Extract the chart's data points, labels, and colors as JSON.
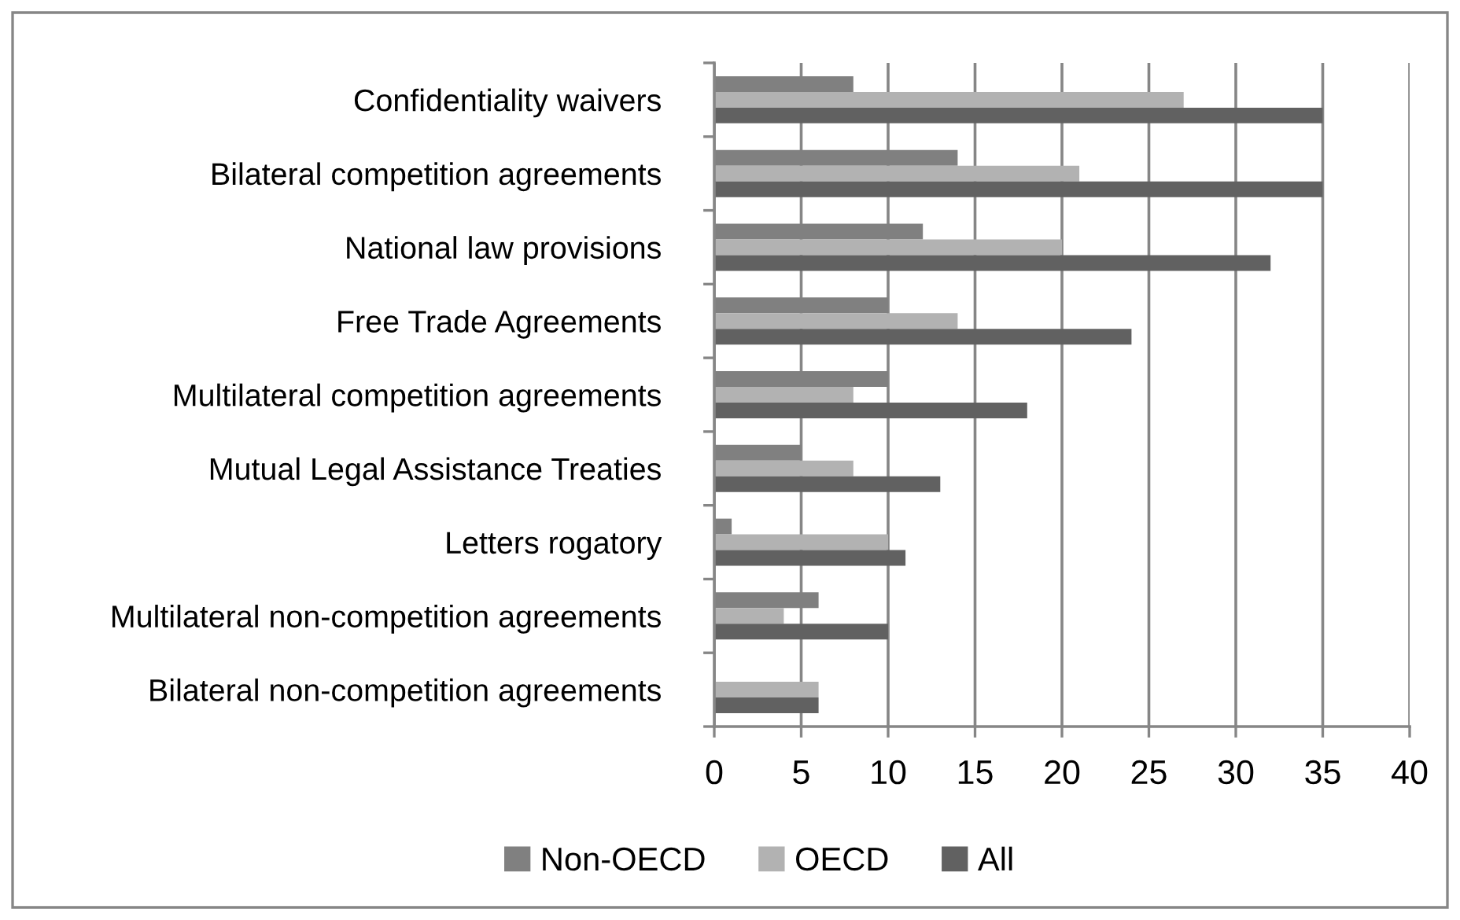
{
  "chart_data": {
    "type": "bar",
    "orientation": "horizontal",
    "categories": [
      "Confidentiality waivers",
      "Bilateral competition agreements",
      "National law provisions",
      "Free Trade Agreements",
      "Multilateral competition agreements",
      "Mutual Legal Assistance Treaties",
      "Letters rogatory",
      "Multilateral non-competition agreements",
      "Bilateral non-competition agreements"
    ],
    "series": [
      {
        "name": "Non-OECD",
        "color": "#808080",
        "values": [
          8,
          14,
          12,
          10,
          10,
          5,
          1,
          6,
          0
        ]
      },
      {
        "name": "OECD",
        "color": "#b2b2b2",
        "values": [
          27,
          21,
          20,
          14,
          8,
          8,
          10,
          4,
          6
        ]
      },
      {
        "name": "All",
        "color": "#616161",
        "values": [
          35,
          35,
          32,
          24,
          18,
          13,
          11,
          10,
          6
        ]
      }
    ],
    "xlim": [
      0,
      40
    ],
    "xticks": [
      0,
      5,
      10,
      15,
      20,
      25,
      30,
      35,
      40
    ],
    "grid": "x",
    "legend": "bottom"
  }
}
